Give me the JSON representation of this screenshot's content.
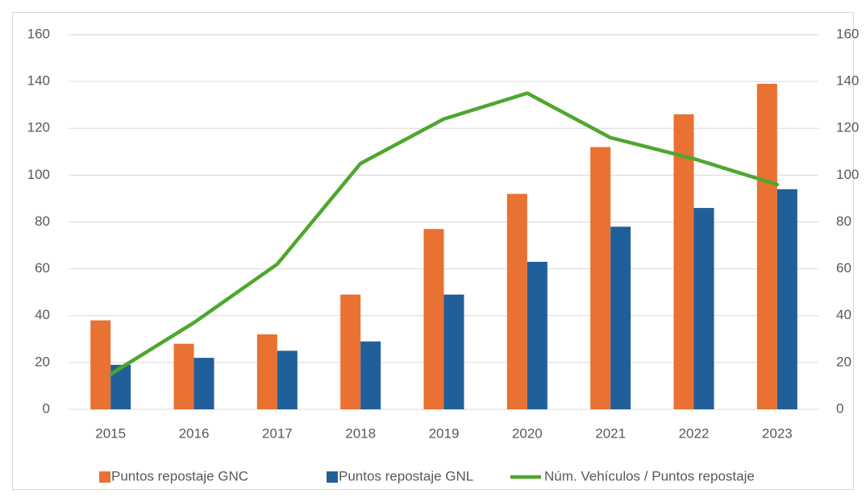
{
  "chart_data": {
    "type": "bar",
    "categories": [
      "2015",
      "2016",
      "2017",
      "2018",
      "2019",
      "2020",
      "2021",
      "2022",
      "2023"
    ],
    "series": [
      {
        "name": "Puntos repostaje GNC",
        "color": "#e97132",
        "type": "bar",
        "values": [
          38,
          28,
          32,
          49,
          77,
          92,
          112,
          126,
          139
        ]
      },
      {
        "name": "Puntos repostaje GNL",
        "color": "#215f9a",
        "type": "bar",
        "values": [
          19,
          22,
          25,
          29,
          49,
          63,
          78,
          86,
          94
        ]
      },
      {
        "name": "Núm. Vehículos / Puntos repostaje",
        "color": "#4ea72e",
        "type": "line",
        "axis": "y2",
        "values": [
          15,
          37,
          62,
          105,
          124,
          135,
          116,
          107,
          96
        ]
      }
    ],
    "ylim": [
      0,
      160
    ],
    "yticks": [
      0,
      20,
      40,
      60,
      80,
      100,
      120,
      140,
      160
    ],
    "y2lim": [
      0,
      160
    ],
    "y2ticks": [
      0,
      20,
      40,
      60,
      80,
      100,
      120,
      140,
      160
    ],
    "grid": true,
    "legend": "bottom"
  }
}
